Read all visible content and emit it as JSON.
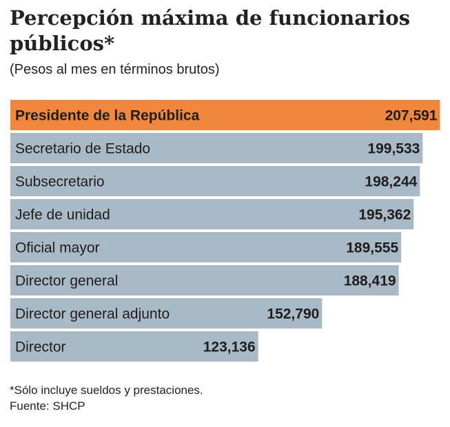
{
  "chart_data": {
    "type": "bar",
    "orientation": "horizontal",
    "title_lines": [
      "Percepción máxima de funcionarios",
      "públicos*"
    ],
    "subtitle": "(Pesos al mes en términos brutos)",
    "categories": [
      "Presidente de la República",
      "Secretario de Estado",
      "Subsecretario",
      "Jefe de unidad",
      "Oficial mayor",
      "Director general",
      "Director general adjunto",
      "Director"
    ],
    "values": [
      207591,
      199533,
      198244,
      195362,
      189555,
      188419,
      152790,
      123136
    ],
    "value_labels": [
      "207,591",
      "199,533",
      "198,244",
      "195,362",
      "189,555",
      "188,419",
      "152,790",
      "123,136"
    ],
    "colors": [
      "#f0873a",
      "#a9b9c6",
      "#a9b9c6",
      "#a9b9c6",
      "#a9b9c6",
      "#a9b9c6",
      "#a9b9c6",
      "#a9b9c6"
    ],
    "footnotes": [
      "*Sólo incluye sueldos y prestaciones.",
      "Fuente: SHCP"
    ]
  }
}
